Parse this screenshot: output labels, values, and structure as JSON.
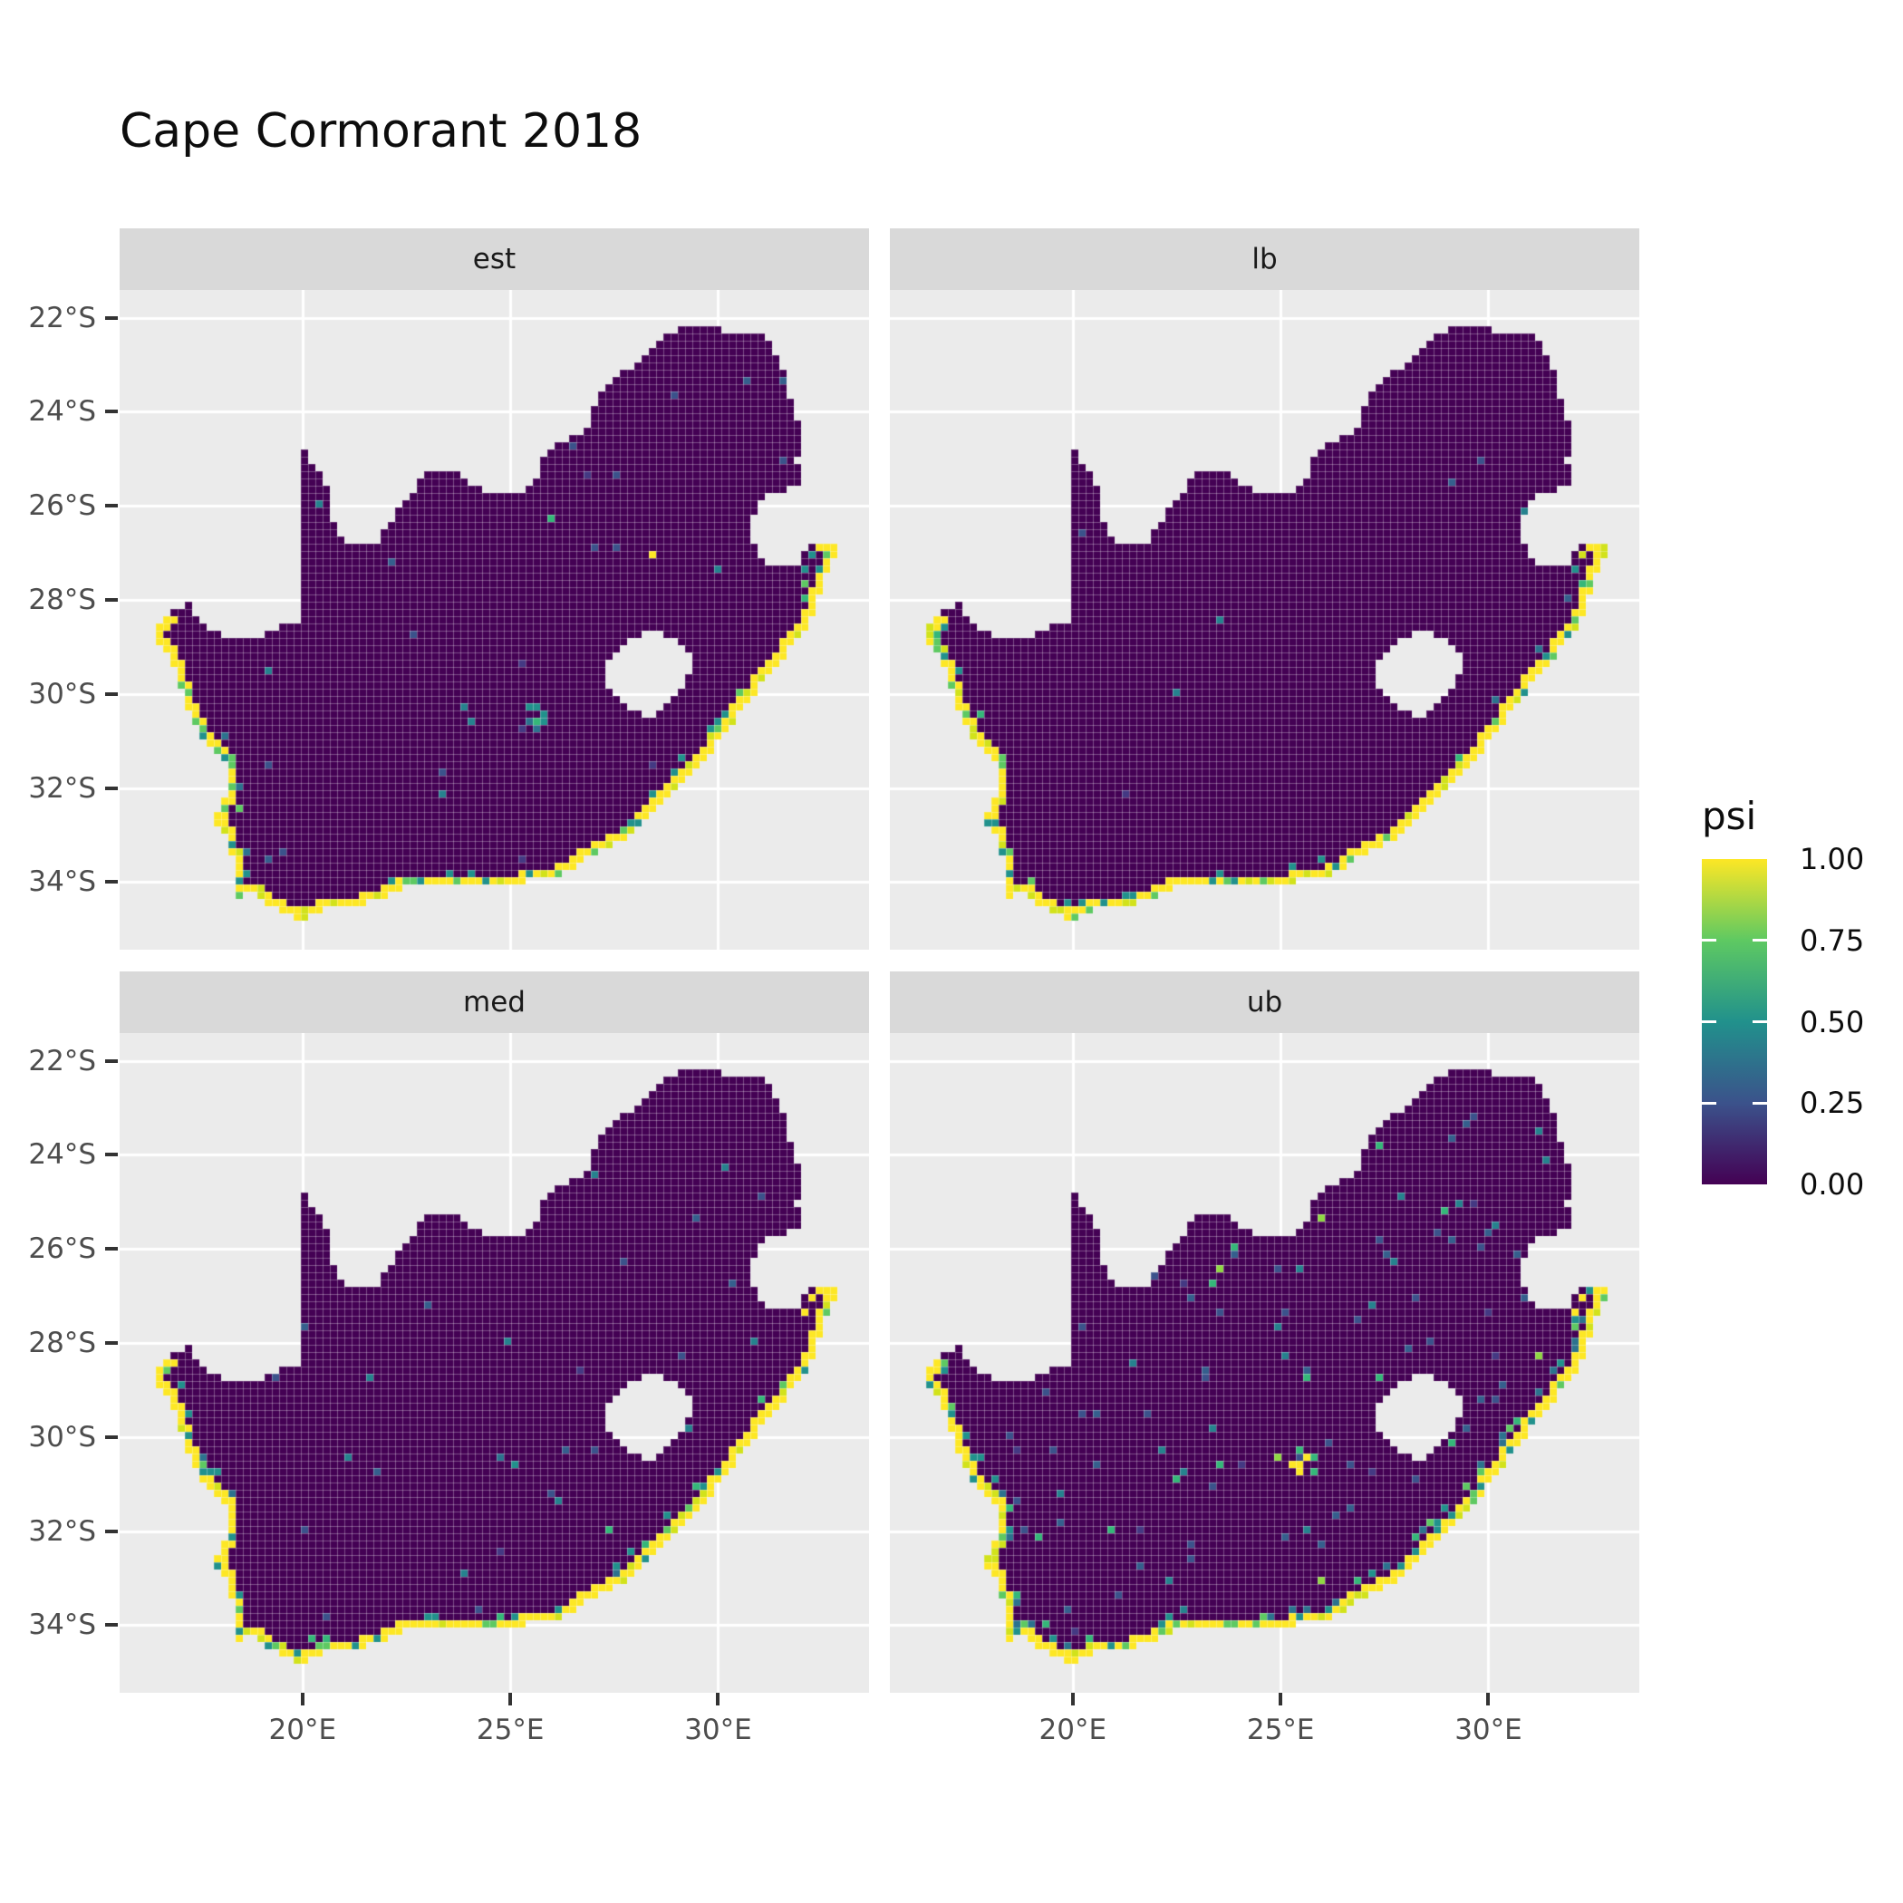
{
  "title": "Cape Cormorant 2018",
  "chart_data": {
    "type": "heatmap",
    "title": "Cape Cormorant 2018",
    "subtitle": "",
    "region": "South Africa raster map, faceted by estimate type",
    "facets": [
      {
        "id": "est",
        "label": "est",
        "row": 0,
        "col": 0,
        "seed": 11,
        "speckle": 0.006,
        "ring1_mix": 0.1,
        "hotspots": [
          {
            "lon": 25.6,
            "lat": -30.55,
            "r": 16,
            "density": 0.45,
            "colors": [
              "#21918c",
              "#2c728e",
              "#35b779"
            ]
          }
        ]
      },
      {
        "id": "lb",
        "label": "lb",
        "row": 0,
        "col": 1,
        "seed": 23,
        "speckle": 0.003,
        "ring1_mix": 0.08,
        "hotspots": []
      },
      {
        "id": "med",
        "label": "med",
        "row": 1,
        "col": 0,
        "seed": 37,
        "speckle": 0.007,
        "ring1_mix": 0.12,
        "hotspots": [
          {
            "lon": 24.9,
            "lat": -30.5,
            "r": 12,
            "density": 0.4,
            "colors": [
              "#21918c",
              "#2c728e"
            ]
          }
        ]
      },
      {
        "id": "ub",
        "label": "ub",
        "row": 1,
        "col": 1,
        "seed": 53,
        "speckle": 0.022,
        "ring1_mix": 0.28,
        "hotspots": [
          {
            "lon": 25.55,
            "lat": -30.55,
            "r": 18,
            "density": 0.5,
            "colors": [
              "#5ec962",
              "#fde725",
              "#35b779"
            ]
          },
          {
            "lon": 22.4,
            "lat": -33.2,
            "r": 12,
            "density": 0.25,
            "colors": [
              "#31688e",
              "#26828e"
            ]
          }
        ]
      }
    ],
    "x_axis": {
      "ticks": [
        {
          "label": "20°E",
          "lon": 20
        },
        {
          "label": "25°E",
          "lon": 25
        },
        {
          "label": "30°E",
          "lon": 30
        }
      ]
    },
    "y_axis": {
      "ticks": [
        {
          "label": "22°S",
          "lat": -22
        },
        {
          "label": "24°S",
          "lat": -24
        },
        {
          "label": "26°S",
          "lat": -26
        },
        {
          "label": "28°S",
          "lat": -28
        },
        {
          "label": "30°S",
          "lat": -30
        },
        {
          "label": "32°S",
          "lat": -32
        },
        {
          "label": "34°S",
          "lat": -34
        }
      ]
    },
    "lon_range": [
      15.6,
      33.63
    ],
    "lat_range": [
      -35.44,
      -21.41
    ],
    "legend": {
      "title": "psi",
      "ticks": [
        {
          "label": "1.00",
          "value": 1.0
        },
        {
          "label": "0.75",
          "value": 0.75
        },
        {
          "label": "0.50",
          "value": 0.5
        },
        {
          "label": "0.25",
          "value": 0.25
        },
        {
          "label": "0.00",
          "value": 0.0
        }
      ],
      "viridis_stops": [
        [
          0,
          "#440154"
        ],
        [
          0.25,
          "#3b528b"
        ],
        [
          0.5,
          "#21918c"
        ],
        [
          0.75,
          "#5ec962"
        ],
        [
          1,
          "#fde725"
        ]
      ]
    },
    "colors": {
      "panel_bg": "#ebebeb",
      "strip_bg": "#d9d9d9",
      "grid_line": "#ffffff",
      "axis_text": "#4d4d4d",
      "tick_mark": "#333333",
      "land_base": "#440154",
      "cell_grid_overlay": "rgba(255,255,255,0.17)",
      "ring0_palette": [
        [
          "#fde725",
          0.74
        ],
        [
          "#d2e21b",
          0.1
        ],
        [
          "#5ec962",
          0.08
        ],
        [
          "#21918c",
          0.08
        ]
      ],
      "ring1_palette": [
        [
          "#21918c",
          0.4
        ],
        [
          "#2c728e",
          0.3
        ],
        [
          "#35b779",
          0.2
        ],
        [
          "#5ec962",
          0.1
        ]
      ],
      "speckle_palette": [
        [
          "#3b528b",
          0.32
        ],
        [
          "#355f8d",
          0.22
        ],
        [
          "#26828e",
          0.18
        ],
        [
          "#443983",
          0.12
        ],
        [
          "#35b779",
          0.1
        ],
        [
          "#90d743",
          0.04
        ],
        [
          "#fde725",
          0.02
        ]
      ]
    },
    "map": {
      "outline": [
        [
          16.45,
          -28.58
        ],
        [
          16.8,
          -28.3
        ],
        [
          17.25,
          -28.08
        ],
        [
          17.7,
          -28.6
        ],
        [
          18.25,
          -28.87
        ],
        [
          18.75,
          -28.82
        ],
        [
          19.3,
          -28.65
        ],
        [
          19.7,
          -28.5
        ],
        [
          19.99,
          -28.4
        ],
        [
          19.99,
          -24.76
        ],
        [
          20.45,
          -25.35
        ],
        [
          20.72,
          -25.95
        ],
        [
          20.75,
          -26.45
        ],
        [
          21.15,
          -26.85
        ],
        [
          21.7,
          -26.85
        ],
        [
          22.15,
          -26.3
        ],
        [
          22.6,
          -25.75
        ],
        [
          23.0,
          -25.32
        ],
        [
          23.65,
          -25.27
        ],
        [
          24.2,
          -25.62
        ],
        [
          24.75,
          -25.8
        ],
        [
          25.35,
          -25.72
        ],
        [
          25.65,
          -25.42
        ],
        [
          25.9,
          -24.75
        ],
        [
          26.4,
          -24.63
        ],
        [
          26.85,
          -24.28
        ],
        [
          27.12,
          -23.65
        ],
        [
          27.6,
          -23.22
        ],
        [
          28.2,
          -22.85
        ],
        [
          28.85,
          -22.32
        ],
        [
          29.35,
          -22.08
        ],
        [
          29.9,
          -22.2
        ],
        [
          30.3,
          -22.3
        ],
        [
          31.2,
          -22.4
        ],
        [
          31.55,
          -23.1
        ],
        [
          31.75,
          -23.85
        ],
        [
          31.97,
          -24.4
        ],
        [
          31.9,
          -25.05
        ],
        [
          31.97,
          -25.55
        ],
        [
          31.3,
          -25.72
        ],
        [
          30.95,
          -25.98
        ],
        [
          30.78,
          -26.38
        ],
        [
          30.85,
          -26.82
        ],
        [
          31.1,
          -27.2
        ],
        [
          31.6,
          -27.32
        ],
        [
          31.97,
          -27.3
        ],
        [
          32.13,
          -26.86
        ],
        [
          32.89,
          -26.86
        ],
        [
          32.55,
          -27.5
        ],
        [
          32.38,
          -28.15
        ],
        [
          32.1,
          -28.65
        ],
        [
          31.7,
          -29.05
        ],
        [
          31.25,
          -29.55
        ],
        [
          30.7,
          -30.15
        ],
        [
          30.2,
          -30.8
        ],
        [
          29.8,
          -31.25
        ],
        [
          29.2,
          -31.8
        ],
        [
          28.55,
          -32.35
        ],
        [
          27.85,
          -33.0
        ],
        [
          27.1,
          -33.35
        ],
        [
          26.4,
          -33.78
        ],
        [
          25.65,
          -33.95
        ],
        [
          25.0,
          -34.0
        ],
        [
          24.2,
          -34.12
        ],
        [
          23.4,
          -34.1
        ],
        [
          22.55,
          -34.05
        ],
        [
          21.8,
          -34.42
        ],
        [
          20.8,
          -34.47
        ],
        [
          20.0,
          -34.82
        ],
        [
          19.35,
          -34.58
        ],
        [
          18.86,
          -34.37
        ],
        [
          18.8,
          -34.08
        ],
        [
          18.48,
          -34.35
        ],
        [
          18.3,
          -34.08
        ],
        [
          18.45,
          -33.88
        ],
        [
          18.25,
          -33.35
        ],
        [
          18.22,
          -32.95
        ],
        [
          17.88,
          -32.78
        ],
        [
          17.85,
          -32.55
        ],
        [
          18.3,
          -32.05
        ],
        [
          18.2,
          -31.55
        ],
        [
          17.6,
          -30.9
        ],
        [
          17.2,
          -30.3
        ],
        [
          16.95,
          -29.4
        ],
        [
          16.48,
          -28.9
        ]
      ],
      "coast_start_index": 47,
      "lesotho_hole": [
        [
          27.75,
          -28.9
        ],
        [
          28.35,
          -28.6
        ],
        [
          29.0,
          -28.82
        ],
        [
          29.42,
          -29.28
        ],
        [
          29.12,
          -29.95
        ],
        [
          28.5,
          -30.45
        ],
        [
          27.9,
          -30.4
        ],
        [
          27.38,
          -29.9
        ],
        [
          27.32,
          -29.35
        ]
      ]
    }
  }
}
